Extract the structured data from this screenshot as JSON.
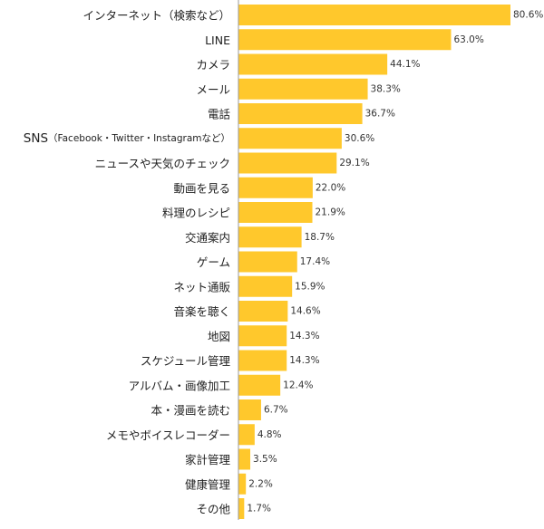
{
  "chart_data": {
    "type": "bar",
    "orientation": "horizontal",
    "categories": [
      "インターネット（検索など）",
      "LINE",
      "カメラ",
      "メール",
      "電話",
      "SNS",
      "ニュースや天気のチェック",
      "動画を見る",
      "料理のレシピ",
      "交通案内",
      "ゲーム",
      "ネット通販",
      "音楽を聴く",
      "地図",
      "スケジュール管理",
      "アルバム・画像加工",
      "本・漫画を読む",
      "メモやボイスレコーダー",
      "家計管理",
      "健康管理",
      "その他"
    ],
    "category_suffixes": {
      "5": "（Facebook・Twitter・Instagramなど）"
    },
    "values": [
      80.6,
      63.0,
      44.1,
      38.3,
      36.7,
      30.6,
      29.1,
      22.0,
      21.9,
      18.7,
      17.4,
      15.9,
      14.6,
      14.3,
      14.3,
      12.4,
      6.7,
      4.8,
      3.5,
      2.2,
      1.7
    ],
    "value_labels": [
      "80.6%",
      "63.0%",
      "44.1%",
      "38.3%",
      "36.7%",
      "30.6%",
      "29.1%",
      "22.0%",
      "21.9%",
      "18.7%",
      "17.4%",
      "15.9%",
      "14.6%",
      "14.3%",
      "14.3%",
      "12.4%",
      "6.7%",
      "4.8%",
      "3.5%",
      "2.2%",
      "1.7%"
    ],
    "xlim": [
      0,
      80.6
    ],
    "grid": false,
    "legend": "none",
    "bar_color": "#FFC82C",
    "axis_color": "#999999"
  }
}
